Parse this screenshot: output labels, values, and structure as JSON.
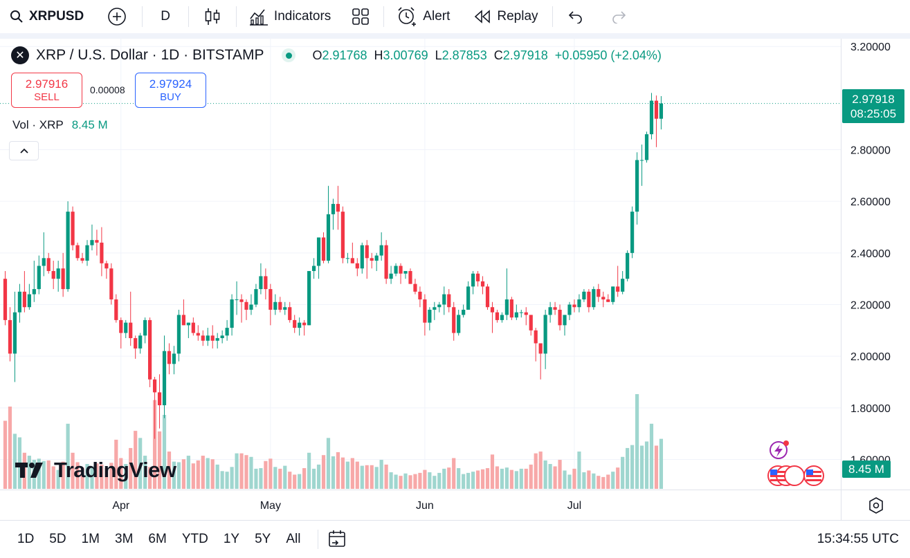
{
  "toolbar": {
    "symbol": "XRPUSD",
    "interval": "D",
    "indicators_label": "Indicators",
    "alert_label": "Alert",
    "replay_label": "Replay"
  },
  "legend": {
    "logo_text": "✕",
    "title": "XRP / U.S. Dollar · 1D · BITSTAMP",
    "open_label": "O",
    "open": "2.91768",
    "high_label": "H",
    "high": "3.00769",
    "low_label": "L",
    "low": "2.87853",
    "close_label": "C",
    "close": "2.97918",
    "change": "+0.05950 (+2.04%)"
  },
  "trade": {
    "sell_price": "2.97916",
    "sell_label": "SELL",
    "spread": "0.00008",
    "buy_price": "2.97924",
    "buy_label": "BUY"
  },
  "volume_legend": {
    "label": "Vol · XRP",
    "value": "8.45 M"
  },
  "price_badge": {
    "price": "2.97918",
    "countdown": "08:25:05"
  },
  "volume_badge": "8.45 M",
  "brand": "TradingView",
  "bottom": {
    "ranges": [
      "1D",
      "5D",
      "1M",
      "3M",
      "6M",
      "YTD",
      "1Y",
      "5Y",
      "All"
    ],
    "clock": "15:34:55 UTC"
  },
  "colors": {
    "up": "#089981",
    "down": "#f23645",
    "up_volume": "#9fd6cf",
    "down_volume": "#f7a8a8"
  },
  "chart_data": {
    "type": "candlestick",
    "symbol": "XRPUSD",
    "interval": "1D",
    "y_ticks": [
      "3.20000",
      "2.80000",
      "2.60000",
      "2.40000",
      "2.20000",
      "2.00000",
      "1.80000",
      "1.60000"
    ],
    "y_ticks_values": [
      3.2,
      2.8,
      2.6,
      2.4,
      2.2,
      2.0,
      1.8,
      1.6
    ],
    "ylim": [
      1.46,
      3.23
    ],
    "x_ticks": [
      {
        "label": "Apr",
        "index": 24
      },
      {
        "label": "May",
        "index": 55
      },
      {
        "label": "Jun",
        "index": 87
      },
      {
        "label": "Jul",
        "index": 118
      }
    ],
    "grid": true,
    "candles": [
      [
        2.3,
        2.33,
        2.12,
        2.14
      ],
      [
        2.14,
        2.19,
        1.98,
        2.01
      ],
      [
        2.01,
        2.25,
        1.9,
        2.17
      ],
      [
        2.17,
        2.28,
        2.13,
        2.25
      ],
      [
        2.25,
        2.33,
        2.17,
        2.19
      ],
      [
        2.19,
        2.28,
        2.18,
        2.24
      ],
      [
        2.24,
        2.37,
        2.21,
        2.26
      ],
      [
        2.26,
        2.39,
        2.24,
        2.35
      ],
      [
        2.35,
        2.48,
        2.31,
        2.38
      ],
      [
        2.38,
        2.4,
        2.32,
        2.33
      ],
      [
        2.33,
        2.37,
        2.26,
        2.3
      ],
      [
        2.3,
        2.37,
        2.25,
        2.34
      ],
      [
        2.34,
        2.4,
        2.23,
        2.26
      ],
      [
        2.26,
        2.6,
        2.25,
        2.56
      ],
      [
        2.56,
        2.58,
        2.41,
        2.43
      ],
      [
        2.43,
        2.44,
        2.37,
        2.38
      ],
      [
        2.38,
        2.4,
        2.36,
        2.37
      ],
      [
        2.37,
        2.45,
        2.35,
        2.43
      ],
      [
        2.43,
        2.51,
        2.41,
        2.45
      ],
      [
        2.45,
        2.49,
        2.39,
        2.44
      ],
      [
        2.44,
        2.5,
        2.31,
        2.36
      ],
      [
        2.36,
        2.37,
        2.3,
        2.34
      ],
      [
        2.34,
        2.36,
        2.2,
        2.22
      ],
      [
        2.22,
        2.24,
        2.13,
        2.14
      ],
      [
        2.14,
        2.15,
        2.03,
        2.09
      ],
      [
        2.09,
        2.14,
        2.07,
        2.13
      ],
      [
        2.13,
        2.25,
        2.04,
        2.07
      ],
      [
        2.07,
        2.08,
        1.99,
        2.03
      ],
      [
        2.03,
        2.09,
        2.01,
        2.08
      ],
      [
        2.08,
        2.15,
        2.05,
        2.14
      ],
      [
        2.14,
        2.15,
        1.88,
        1.91
      ],
      [
        1.91,
        1.92,
        1.68,
        1.86
      ],
      [
        1.86,
        1.93,
        1.72,
        1.81
      ],
      [
        1.81,
        2.08,
        1.76,
        2.02
      ],
      [
        2.02,
        2.05,
        1.93,
        1.97
      ],
      [
        1.97,
        2.04,
        1.93,
        2.01
      ],
      [
        2.01,
        2.18,
        1.98,
        2.16
      ],
      [
        2.16,
        2.22,
        2.12,
        2.12
      ],
      [
        2.12,
        2.13,
        2.07,
        2.13
      ],
      [
        2.13,
        2.15,
        2.08,
        2.09
      ],
      [
        2.09,
        2.12,
        2.06,
        2.08
      ],
      [
        2.08,
        2.1,
        2.04,
        2.06
      ],
      [
        2.06,
        2.11,
        2.04,
        2.08
      ],
      [
        2.08,
        2.12,
        2.03,
        2.06
      ],
      [
        2.06,
        2.09,
        2.03,
        2.07
      ],
      [
        2.07,
        2.1,
        2.05,
        2.08
      ],
      [
        2.08,
        2.14,
        2.06,
        2.11
      ],
      [
        2.11,
        2.24,
        2.08,
        2.22
      ],
      [
        2.22,
        2.29,
        2.16,
        2.22
      ],
      [
        2.22,
        2.24,
        2.13,
        2.21
      ],
      [
        2.21,
        2.22,
        2.14,
        2.18
      ],
      [
        2.18,
        2.24,
        2.16,
        2.2
      ],
      [
        2.2,
        2.28,
        2.19,
        2.26
      ],
      [
        2.26,
        2.36,
        2.24,
        2.31
      ],
      [
        2.31,
        2.34,
        2.22,
        2.26
      ],
      [
        2.26,
        2.28,
        2.12,
        2.18
      ],
      [
        2.18,
        2.24,
        2.16,
        2.21
      ],
      [
        2.21,
        2.23,
        2.17,
        2.18
      ],
      [
        2.18,
        2.21,
        2.16,
        2.19
      ],
      [
        2.19,
        2.21,
        2.13,
        2.14
      ],
      [
        2.14,
        2.16,
        2.09,
        2.11
      ],
      [
        2.11,
        2.15,
        2.08,
        2.13
      ],
      [
        2.13,
        2.14,
        2.08,
        2.12
      ],
      [
        2.12,
        2.33,
        2.12,
        2.33
      ],
      [
        2.33,
        2.38,
        2.3,
        2.35
      ],
      [
        2.35,
        2.46,
        2.3,
        2.46
      ],
      [
        2.46,
        2.48,
        2.36,
        2.37
      ],
      [
        2.37,
        2.66,
        2.36,
        2.55
      ],
      [
        2.55,
        2.61,
        2.49,
        2.59
      ],
      [
        2.59,
        2.66,
        2.49,
        2.56
      ],
      [
        2.56,
        2.58,
        2.36,
        2.38
      ],
      [
        2.38,
        2.4,
        2.36,
        2.38
      ],
      [
        2.38,
        2.44,
        2.36,
        2.36
      ],
      [
        2.36,
        2.38,
        2.31,
        2.34
      ],
      [
        2.34,
        2.44,
        2.32,
        2.43
      ],
      [
        2.43,
        2.45,
        2.3,
        2.38
      ],
      [
        2.38,
        2.4,
        2.34,
        2.37
      ],
      [
        2.37,
        2.4,
        2.33,
        2.39
      ],
      [
        2.39,
        2.48,
        2.37,
        2.43
      ],
      [
        2.43,
        2.45,
        2.28,
        2.3
      ],
      [
        2.3,
        2.35,
        2.28,
        2.32
      ],
      [
        2.32,
        2.36,
        2.31,
        2.35
      ],
      [
        2.35,
        2.36,
        2.28,
        2.32
      ],
      [
        2.32,
        2.33,
        2.3,
        2.33
      ],
      [
        2.33,
        2.34,
        2.28,
        2.28
      ],
      [
        2.28,
        2.3,
        2.24,
        2.25
      ],
      [
        2.25,
        2.27,
        2.19,
        2.22
      ],
      [
        2.22,
        2.24,
        2.08,
        2.13
      ],
      [
        2.13,
        2.19,
        2.1,
        2.18
      ],
      [
        2.18,
        2.21,
        2.14,
        2.19
      ],
      [
        2.19,
        2.21,
        2.17,
        2.2
      ],
      [
        2.2,
        2.27,
        2.16,
        2.24
      ],
      [
        2.24,
        2.26,
        2.17,
        2.19
      ],
      [
        2.19,
        2.21,
        2.06,
        2.09
      ],
      [
        2.09,
        2.18,
        2.08,
        2.16
      ],
      [
        2.16,
        2.2,
        2.15,
        2.18
      ],
      [
        2.18,
        2.29,
        2.18,
        2.27
      ],
      [
        2.27,
        2.33,
        2.24,
        2.32
      ],
      [
        2.32,
        2.33,
        2.27,
        2.29
      ],
      [
        2.29,
        2.31,
        2.24,
        2.27
      ],
      [
        2.27,
        2.28,
        2.18,
        2.19
      ],
      [
        2.19,
        2.21,
        2.09,
        2.17
      ],
      [
        2.17,
        2.18,
        2.13,
        2.14
      ],
      [
        2.14,
        2.17,
        2.13,
        2.16
      ],
      [
        2.16,
        2.34,
        2.14,
        2.22
      ],
      [
        2.22,
        2.23,
        2.14,
        2.15
      ],
      [
        2.15,
        2.2,
        2.14,
        2.17
      ],
      [
        2.17,
        2.18,
        2.15,
        2.17
      ],
      [
        2.17,
        2.19,
        2.12,
        2.16
      ],
      [
        2.16,
        2.16,
        2.08,
        2.1
      ],
      [
        2.1,
        2.11,
        1.98,
        2.05
      ],
      [
        2.05,
        2.05,
        1.91,
        2.01
      ],
      [
        2.01,
        2.18,
        1.95,
        2.16
      ],
      [
        2.16,
        2.21,
        2.13,
        2.19
      ],
      [
        2.19,
        2.21,
        2.16,
        2.18
      ],
      [
        2.18,
        2.2,
        2.1,
        2.12
      ],
      [
        2.12,
        2.16,
        2.08,
        2.16
      ],
      [
        2.16,
        2.21,
        2.14,
        2.2
      ],
      [
        2.2,
        2.22,
        2.17,
        2.19
      ],
      [
        2.19,
        2.24,
        2.17,
        2.22
      ],
      [
        2.22,
        2.26,
        2.21,
        2.25
      ],
      [
        2.25,
        2.26,
        2.17,
        2.19
      ],
      [
        2.19,
        2.27,
        2.18,
        2.26
      ],
      [
        2.26,
        2.28,
        2.21,
        2.23
      ],
      [
        2.23,
        2.25,
        2.19,
        2.22
      ],
      [
        2.22,
        2.24,
        2.21,
        2.21
      ],
      [
        2.21,
        2.27,
        2.2,
        2.27
      ],
      [
        2.27,
        2.35,
        2.23,
        2.25
      ],
      [
        2.25,
        2.33,
        2.24,
        2.3
      ],
      [
        2.3,
        2.41,
        2.29,
        2.4
      ],
      [
        2.4,
        2.58,
        2.38,
        2.56
      ],
      [
        2.56,
        2.79,
        2.51,
        2.76
      ],
      [
        2.76,
        2.82,
        2.66,
        2.76
      ],
      [
        2.76,
        2.87,
        2.75,
        2.86
      ],
      [
        2.86,
        3.02,
        2.84,
        2.99
      ],
      [
        2.99,
        3.01,
        2.81,
        2.92
      ],
      [
        2.92,
        3.00769,
        2.87853,
        2.97918
      ]
    ],
    "volumes_millions": [
      11.5,
      13.9,
      9.3,
      8.7,
      6.1,
      5.6,
      4.9,
      5.1,
      4.7,
      4.8,
      3.8,
      3.2,
      4.6,
      11.0,
      6.1,
      4.5,
      3.6,
      4.2,
      3.8,
      4.3,
      4.1,
      3.5,
      4.4,
      8.3,
      5.2,
      4.2,
      6.9,
      9.8,
      8.6,
      5.6,
      3.7,
      15.0,
      9.7,
      12.5,
      6.3,
      4.6,
      4.5,
      5.0,
      5.6,
      4.3,
      4.8,
      5.6,
      5.2,
      5.0,
      4.1,
      3.0,
      2.9,
      3.7,
      6.0,
      6.0,
      5.7,
      5.4,
      3.4,
      3.5,
      4.7,
      5.1,
      3.7,
      3.4,
      3.9,
      2.9,
      2.4,
      2.5,
      3.5,
      6.1,
      3.4,
      4.1,
      5.7,
      8.6,
      5.5,
      6.2,
      5.3,
      4.6,
      5.2,
      4.6,
      3.9,
      4.0,
      4.0,
      3.7,
      4.9,
      4.1,
      2.8,
      2.4,
      2.2,
      2.6,
      2.3,
      2.5,
      2.7,
      3.2,
      2.8,
      2.2,
      2.7,
      3.4,
      3.6,
      5.2,
      3.5,
      2.5,
      2.7,
      2.9,
      3.1,
      3.3,
      3.5,
      5.8,
      3.8,
      3.4,
      3.6,
      3.2,
      3.0,
      3.4,
      3.4,
      4.1,
      6.0,
      6.3,
      4.8,
      4.2,
      3.8,
      4.9,
      3.1,
      2.4,
      3.4,
      6.3,
      2.8,
      3.1,
      2.6,
      2.2,
      2.0,
      2.4,
      2.9,
      3.6,
      5.4,
      6.9,
      7.4,
      16.0,
      7.3,
      8.0,
      11.0,
      7.3,
      8.45
    ]
  }
}
